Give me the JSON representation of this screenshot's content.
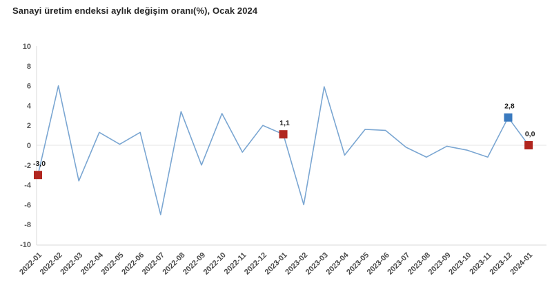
{
  "title": "Sanayi üretim endeksi aylık değişim oranı(%), Ocak 2024",
  "chart_data": {
    "type": "line",
    "title": "Sanayi üretim endeksi aylık değişim oranı(%), Ocak 2024",
    "xlabel": "",
    "ylabel": "",
    "ylim": [
      -10,
      10
    ],
    "y_ticks": [
      10,
      8,
      6,
      4,
      2,
      0,
      -2,
      -4,
      -6,
      -8,
      -10
    ],
    "grid": "zero-line-only",
    "legend_position": "none",
    "categories": [
      "2022-01",
      "2022-02",
      "2022-03",
      "2022-04",
      "2022-05",
      "2022-06",
      "2022-07",
      "2022-08",
      "2022-09",
      "2022-10",
      "2022-11",
      "2022-12",
      "2023-01",
      "2023-02",
      "2023-03",
      "2023-04",
      "2023-05",
      "2023-06",
      "2023-07",
      "2023-08",
      "2023-09",
      "2023-10",
      "2023-11",
      "2023-12",
      "2024-01"
    ],
    "values": [
      -3.0,
      6.0,
      -3.6,
      1.3,
      0.1,
      1.3,
      -7.0,
      3.4,
      -2.0,
      3.2,
      -0.7,
      2.0,
      1.1,
      -6.0,
      5.9,
      -1.0,
      1.6,
      1.5,
      -0.2,
      -1.2,
      -0.1,
      -0.5,
      -1.2,
      2.8,
      0.0
    ],
    "annotations": [
      {
        "category": "2022-01",
        "label": "-3,0",
        "marker_color": "#b1261f"
      },
      {
        "category": "2023-01",
        "label": "1,1",
        "marker_color": "#b1261f"
      },
      {
        "category": "2023-12",
        "label": "2,8",
        "marker_color": "#3a7abf"
      },
      {
        "category": "2024-01",
        "label": "0,0",
        "marker_color": "#b1261f"
      }
    ],
    "colors": {
      "line": "#7aa6d2",
      "axis": "#d9d9d9",
      "zero_gridline": "#e4e4e4",
      "background": "#ffffff"
    }
  }
}
